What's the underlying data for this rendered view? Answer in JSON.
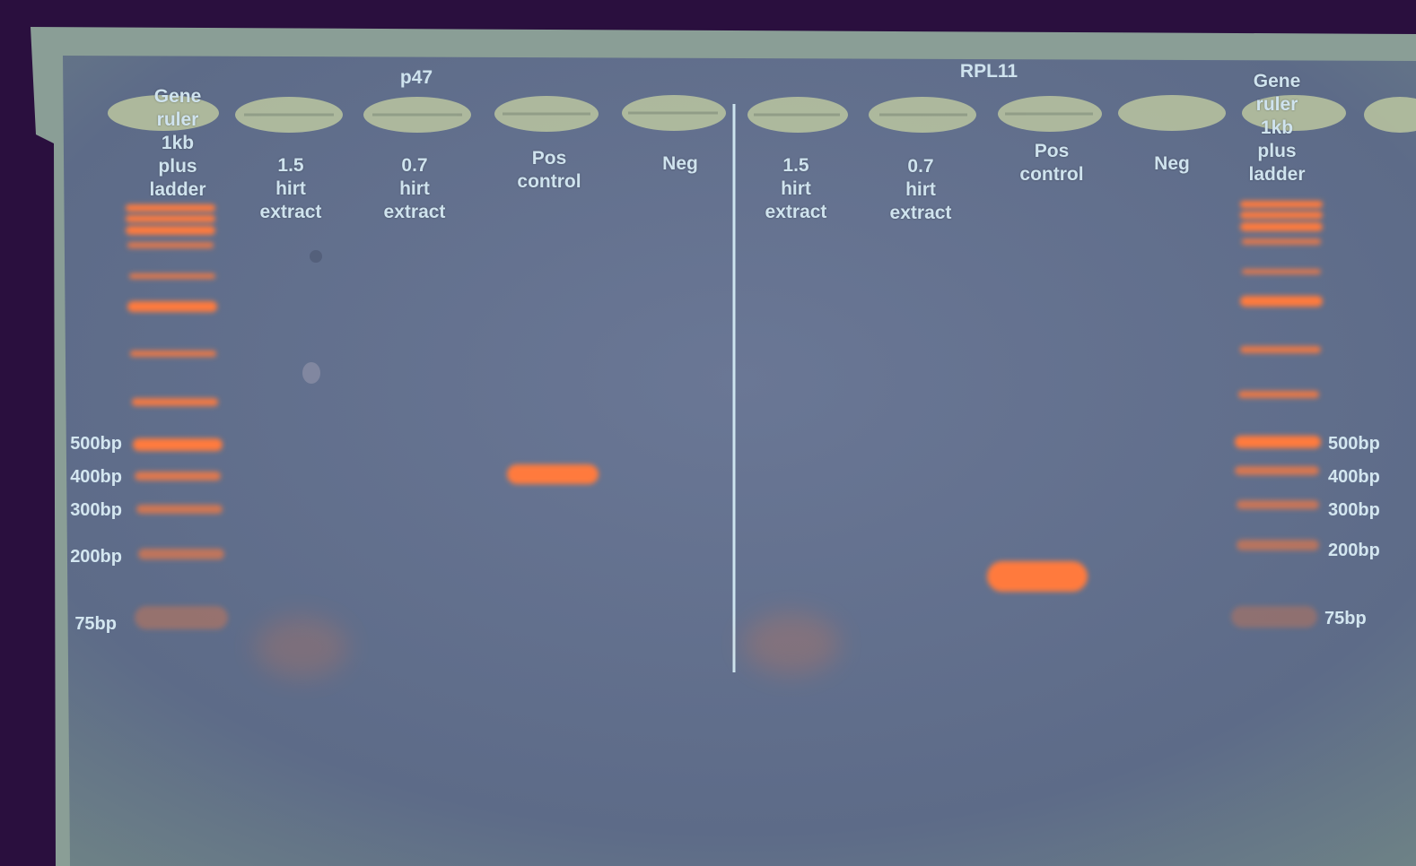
{
  "colors": {
    "background": "#2a0f3e",
    "gel": "#5f6e8c",
    "gel_edge": "#8fa39b",
    "well": "#b9c4a4",
    "band": "#ff7a3d",
    "label": "#cfe3ee"
  },
  "groups": {
    "left": "p47",
    "right": "RPL11"
  },
  "lanes": [
    {
      "lines": [
        "Gene",
        "ruler",
        "1kb",
        "plus",
        "ladder"
      ]
    },
    {
      "lines": [
        "1.5",
        "hirt",
        "extract"
      ]
    },
    {
      "lines": [
        "0.7",
        "hirt",
        "extract"
      ]
    },
    {
      "lines": [
        "Pos",
        "control"
      ]
    },
    {
      "lines": [
        "Neg"
      ]
    },
    {
      "lines": [
        "1.5",
        "hirt",
        "extract"
      ]
    },
    {
      "lines": [
        "0.7",
        "hirt",
        "extract"
      ]
    },
    {
      "lines": [
        "Pos",
        "control"
      ]
    },
    {
      "lines": [
        "Neg"
      ]
    },
    {
      "lines": [
        "Gene",
        "ruler",
        "1kb",
        "plus",
        "ladder"
      ]
    }
  ],
  "size_markers": {
    "left": [
      "500bp",
      "400bp",
      "300bp",
      "200bp",
      "75bp"
    ],
    "right": [
      "500bp",
      "400bp",
      "300bp",
      "200bp",
      "75bp"
    ]
  }
}
